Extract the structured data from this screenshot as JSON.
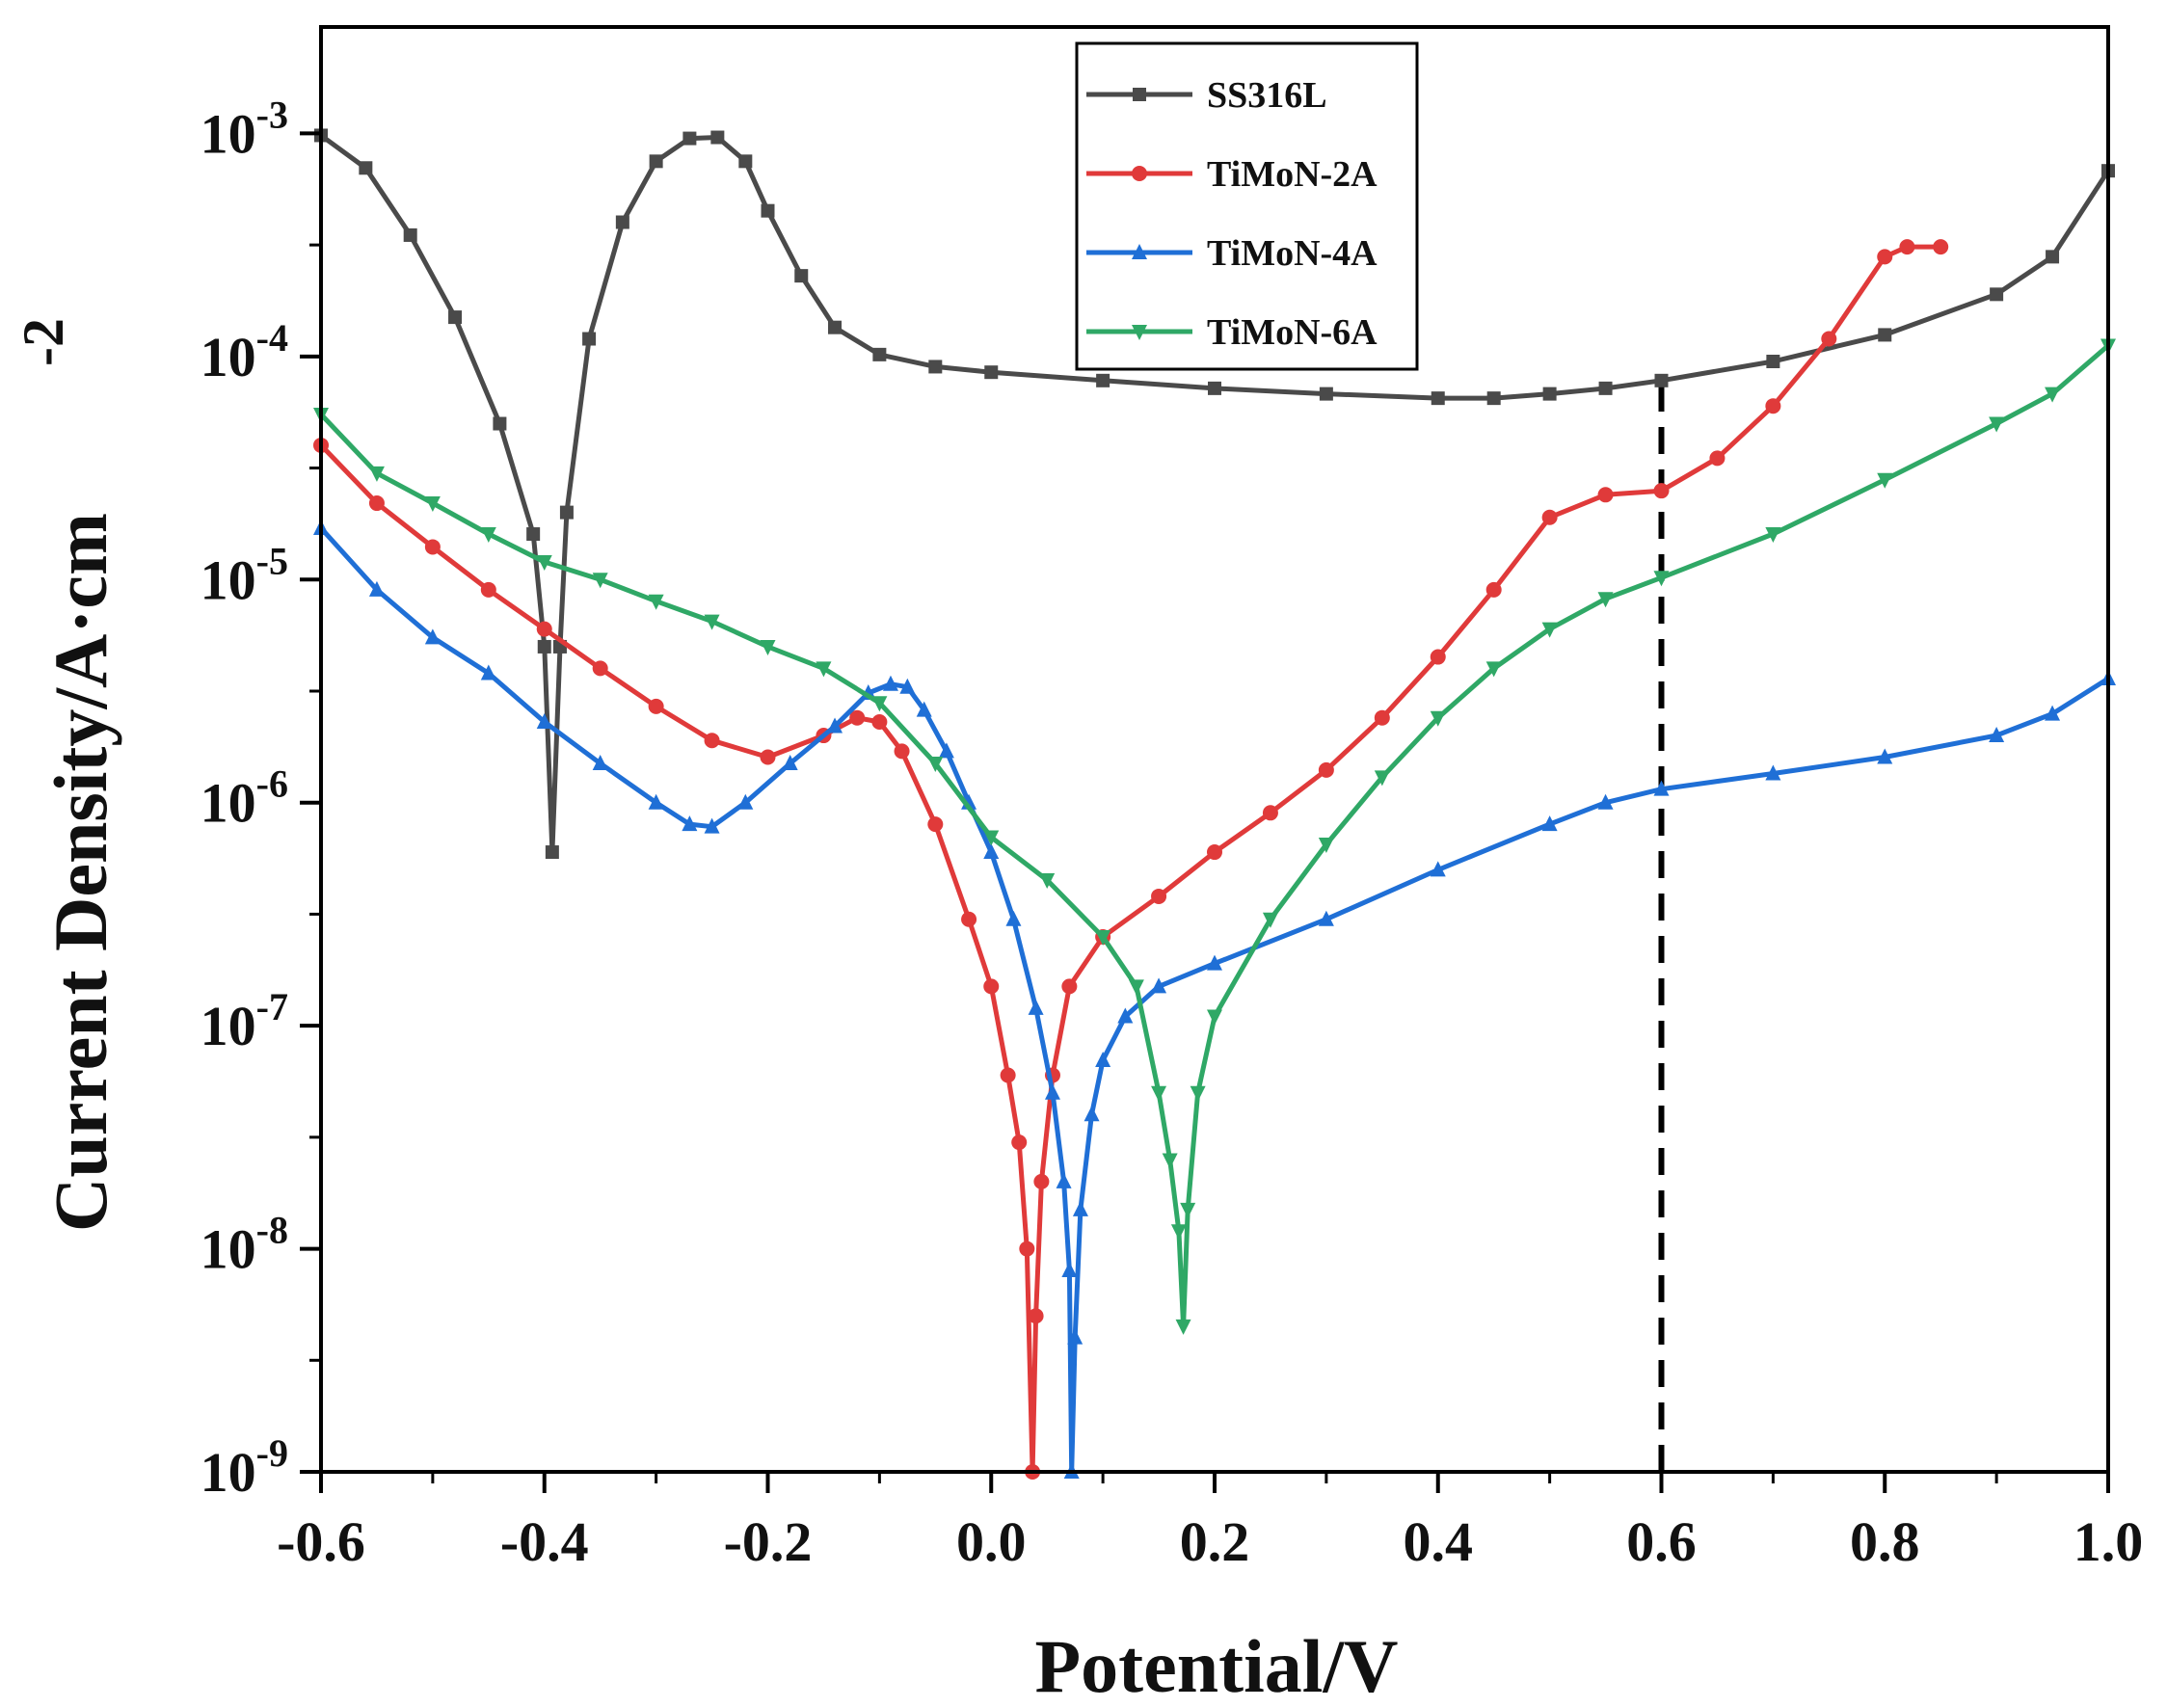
{
  "chart_data": {
    "type": "line",
    "title": "",
    "xlabel": "Potential/V",
    "ylabel": "Current Density/A·cm",
    "ylabel_superscript": "-2",
    "yscale": "log",
    "xlim": [
      -0.6,
      1.0
    ],
    "ylim": [
      1e-09,
      0.003
    ],
    "x_ticks": [
      -0.6,
      -0.4,
      -0.2,
      0.0,
      0.2,
      0.4,
      0.6,
      0.8,
      1.0
    ],
    "x_tick_labels": [
      "-0.6",
      "-0.4",
      "-0.2",
      "0.0",
      "0.2",
      "0.4",
      "0.6",
      "0.8",
      "1.0"
    ],
    "y_ticks": [
      -9,
      -8,
      -7,
      -6,
      -5,
      -4,
      -3
    ],
    "y_tick_labels": [
      {
        "base": "10",
        "exp": "-9"
      },
      {
        "base": "10",
        "exp": "-8"
      },
      {
        "base": "10",
        "exp": "-7"
      },
      {
        "base": "10",
        "exp": "-6"
      },
      {
        "base": "10",
        "exp": "-5"
      },
      {
        "base": "10",
        "exp": "-4"
      },
      {
        "base": "10",
        "exp": "-3"
      }
    ],
    "reference_line": {
      "x": 0.6,
      "style": "dashed",
      "from": 1e-09,
      "to": 7.8e-05
    },
    "legend_position": "top-center",
    "series": [
      {
        "name": "SS316L",
        "color": "#4a4a4a",
        "marker": "square",
        "x": [
          -0.6,
          -0.56,
          -0.52,
          -0.48,
          -0.44,
          -0.41,
          -0.4,
          -0.393,
          -0.386,
          -0.38,
          -0.36,
          -0.33,
          -0.3,
          -0.27,
          -0.245,
          -0.22,
          -0.2,
          -0.17,
          -0.14,
          -0.1,
          -0.05,
          0.0,
          0.1,
          0.2,
          0.3,
          0.4,
          0.45,
          0.5,
          0.55,
          0.6,
          0.7,
          0.8,
          0.9,
          0.95,
          1.0
        ],
        "y": [
          0.00098,
          0.0007,
          0.00035,
          0.00015,
          5e-05,
          1.6e-05,
          5e-06,
          6e-07,
          5e-06,
          2e-05,
          0.00012,
          0.0004,
          0.00075,
          0.00095,
          0.00096,
          0.00075,
          0.00045,
          0.00023,
          0.000135,
          0.000102,
          9e-05,
          8.5e-05,
          7.8e-05,
          7.2e-05,
          6.8e-05,
          6.5e-05,
          6.5e-05,
          6.8e-05,
          7.2e-05,
          7.8e-05,
          9.5e-05,
          0.000125,
          0.00019,
          0.00028,
          0.00068
        ]
      },
      {
        "name": "TiMoN-2A",
        "color": "#e03a3a",
        "marker": "circle",
        "x": [
          -0.6,
          -0.55,
          -0.5,
          -0.45,
          -0.4,
          -0.35,
          -0.3,
          -0.25,
          -0.2,
          -0.15,
          -0.12,
          -0.1,
          -0.08,
          -0.05,
          -0.02,
          0.0,
          0.015,
          0.025,
          0.032,
          0.037,
          0.04,
          0.045,
          0.055,
          0.07,
          0.1,
          0.15,
          0.2,
          0.25,
          0.3,
          0.35,
          0.4,
          0.45,
          0.5,
          0.55,
          0.6,
          0.65,
          0.7,
          0.75,
          0.8,
          0.82,
          0.85
        ],
        "y": [
          4e-05,
          2.2e-05,
          1.4e-05,
          9e-06,
          6e-06,
          4e-06,
          2.7e-06,
          1.9e-06,
          1.6e-06,
          2e-06,
          2.4e-06,
          2.3e-06,
          1.7e-06,
          8e-07,
          3e-07,
          1.5e-07,
          6e-08,
          3e-08,
          1e-08,
          1e-09,
          5e-09,
          2e-08,
          6e-08,
          1.5e-07,
          2.5e-07,
          3.8e-07,
          6e-07,
          9e-07,
          1.4e-06,
          2.4e-06,
          4.5e-06,
          9e-06,
          1.9e-05,
          2.4e-05,
          2.5e-05,
          3.5e-05,
          6e-05,
          0.00012,
          0.00028,
          0.00031,
          0.00031
        ]
      },
      {
        "name": "TiMoN-4A",
        "color": "#1f6fd6",
        "marker": "triangle-up",
        "x": [
          -0.6,
          -0.55,
          -0.5,
          -0.45,
          -0.4,
          -0.35,
          -0.3,
          -0.27,
          -0.25,
          -0.22,
          -0.18,
          -0.14,
          -0.11,
          -0.09,
          -0.075,
          -0.06,
          -0.04,
          -0.02,
          0.0,
          0.02,
          0.04,
          0.055,
          0.065,
          0.07,
          0.072,
          0.075,
          0.08,
          0.09,
          0.1,
          0.12,
          0.15,
          0.2,
          0.3,
          0.4,
          0.5,
          0.55,
          0.6,
          0.7,
          0.8,
          0.9,
          0.95,
          1.0
        ],
        "y": [
          1.7e-05,
          9e-06,
          5.5e-06,
          3.8e-06,
          2.3e-06,
          1.5e-06,
          1e-06,
          8e-07,
          7.8e-07,
          1e-06,
          1.5e-06,
          2.2e-06,
          3.1e-06,
          3.4e-06,
          3.3e-06,
          2.6e-06,
          1.7e-06,
          1e-06,
          6e-07,
          3e-07,
          1.2e-07,
          5e-08,
          2e-08,
          8e-09,
          1e-09,
          4e-09,
          1.5e-08,
          4e-08,
          7e-08,
          1.1e-07,
          1.5e-07,
          1.9e-07,
          3e-07,
          5e-07,
          8e-07,
          1e-06,
          1.15e-06,
          1.35e-06,
          1.6e-06,
          2e-06,
          2.5e-06,
          3.6e-06
        ]
      },
      {
        "name": "TiMoN-6A",
        "color": "#2fa866",
        "marker": "triangle-down",
        "x": [
          -0.6,
          -0.55,
          -0.5,
          -0.45,
          -0.4,
          -0.35,
          -0.3,
          -0.25,
          -0.2,
          -0.15,
          -0.1,
          -0.05,
          0.0,
          0.05,
          0.1,
          0.13,
          0.15,
          0.16,
          0.168,
          0.172,
          0.176,
          0.185,
          0.2,
          0.25,
          0.3,
          0.35,
          0.4,
          0.45,
          0.5,
          0.55,
          0.6,
          0.7,
          0.8,
          0.9,
          0.95,
          1.0
        ],
        "y": [
          5.5e-05,
          3e-05,
          2.2e-05,
          1.6e-05,
          1.2e-05,
          1e-05,
          8e-06,
          6.5e-06,
          5e-06,
          4e-06,
          2.8e-06,
          1.5e-06,
          7e-07,
          4.5e-07,
          2.5e-07,
          1.5e-07,
          5e-08,
          2.5e-08,
          1.2e-08,
          4.5e-09,
          1.5e-08,
          5e-08,
          1.1e-07,
          3e-07,
          6.5e-07,
          1.3e-06,
          2.4e-06,
          4e-06,
          6e-06,
          8.2e-06,
          1.02e-05,
          1.6e-05,
          2.8e-05,
          5e-05,
          6.8e-05,
          0.000112
        ]
      }
    ]
  }
}
